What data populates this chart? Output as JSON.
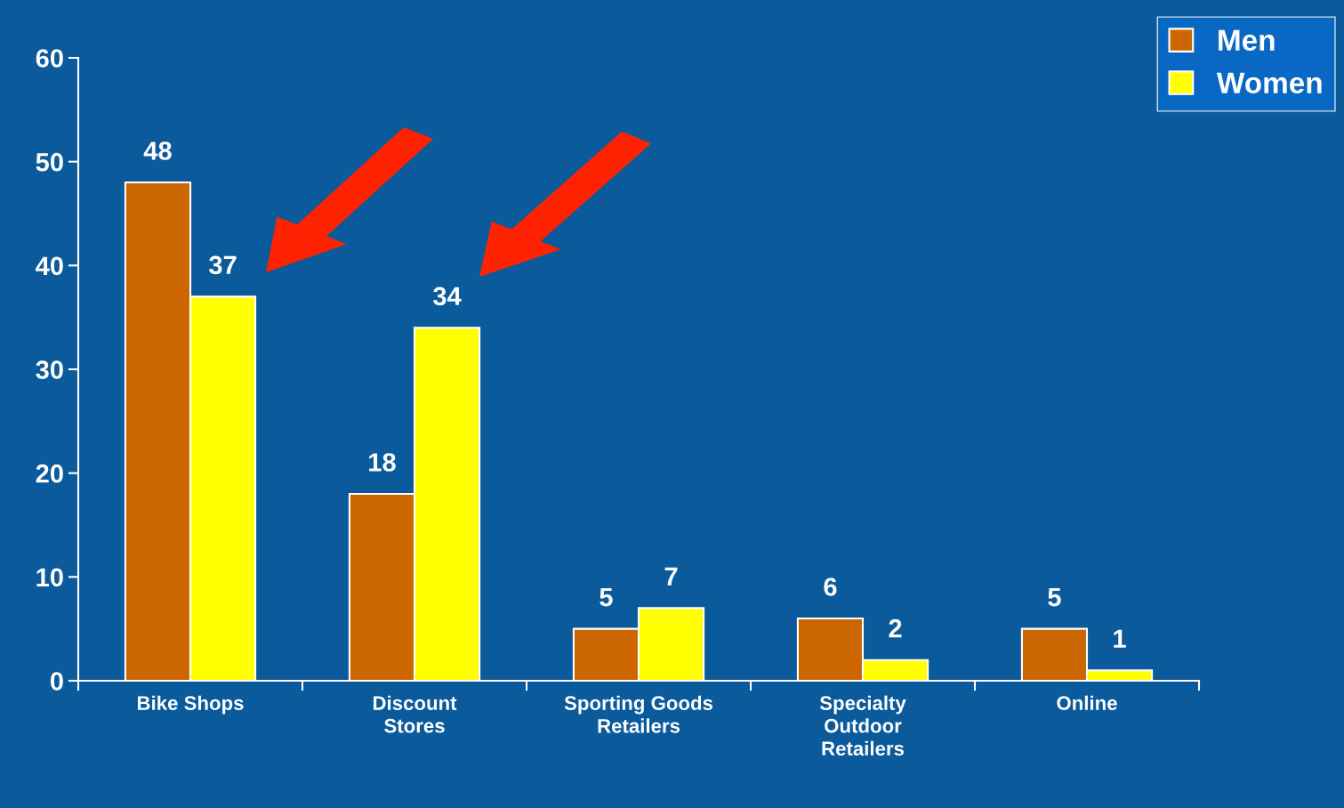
{
  "chart_data": {
    "type": "bar",
    "categories": [
      "Bike Shops",
      "Discount Stores",
      "Sporting Goods Retailers",
      "Specialty Outdoor Retailers",
      "Online"
    ],
    "series": [
      {
        "name": "Men",
        "color": "#cc6600",
        "values": [
          48,
          18,
          5,
          6,
          5
        ]
      },
      {
        "name": "Women",
        "color": "#ffff00",
        "values": [
          37,
          34,
          7,
          2,
          1
        ]
      }
    ],
    "ylim": [
      0,
      60
    ],
    "yticks": [
      0,
      10,
      20,
      30,
      40,
      50,
      60
    ],
    "data_labels": true,
    "legend": "top right",
    "grid": false
  }
}
